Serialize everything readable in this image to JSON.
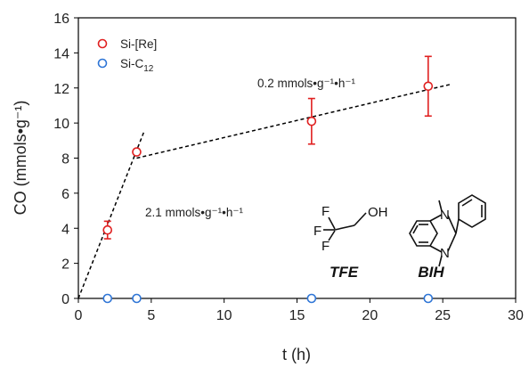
{
  "chart_data": {
    "type": "scatter",
    "xlabel": "t (h)",
    "ylabel": "CO (mmols•g⁻¹)",
    "xlim": [
      0,
      30
    ],
    "ylim": [
      0,
      16
    ],
    "xticks": [
      0,
      5,
      10,
      15,
      20,
      25,
      30
    ],
    "yticks": [
      0,
      2,
      4,
      6,
      8,
      10,
      12,
      14,
      16
    ],
    "legend_position": "top-left",
    "series": [
      {
        "name": "Si-[Re]",
        "color": "#e02020",
        "marker": "open-circle",
        "points": [
          {
            "x": 2,
            "y": 3.9,
            "err": 0.5
          },
          {
            "x": 4,
            "y": 8.35,
            "err": 0.15
          },
          {
            "x": 16,
            "y": 10.1,
            "err": 1.3
          },
          {
            "x": 24,
            "y": 12.1,
            "err": 1.7
          }
        ]
      },
      {
        "name": "Si-C12",
        "name_main": "Si-C",
        "name_sub": "12",
        "color": "#2e75d6",
        "marker": "open-circle",
        "points": [
          {
            "x": 2,
            "y": 0
          },
          {
            "x": 4,
            "y": 0
          },
          {
            "x": 16,
            "y": 0
          },
          {
            "x": 24,
            "y": 0
          }
        ]
      }
    ],
    "fit_lines": [
      {
        "x": [
          0,
          4.5
        ],
        "y": [
          0,
          9.5
        ]
      },
      {
        "x": [
          4,
          25.5
        ],
        "y": [
          8.0,
          12.2
        ]
      }
    ],
    "annotations": [
      {
        "text": "2.1 mmols•g⁻¹•h⁻¹",
        "x": 4.6,
        "y": 5.7
      },
      {
        "text": "0.2 mmols•g⁻¹•h⁻¹",
        "x": 12.4,
        "y": 14.2
      }
    ],
    "molecules": [
      {
        "label": "TFE",
        "atoms": [
          "F",
          "F",
          "F",
          "OH"
        ]
      },
      {
        "label": "BIH",
        "atoms": [
          "N",
          "N"
        ]
      }
    ],
    "grid": false
  }
}
